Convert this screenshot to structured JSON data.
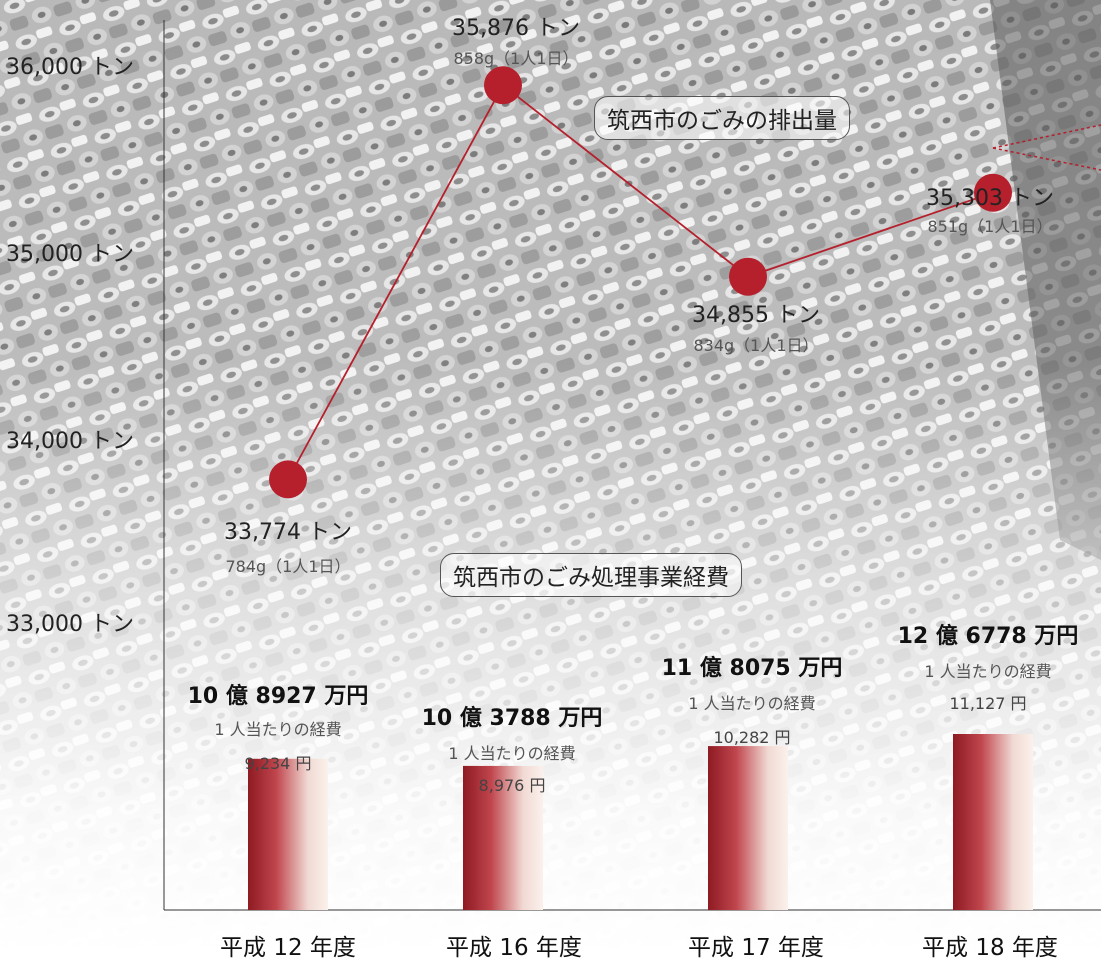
{
  "chart_data": [
    {
      "type": "line",
      "title": "筑西市のごみの排出量",
      "categories": [
        "平成 12 年度",
        "平成 16 年度",
        "平成 17 年度",
        "平成 18 年度"
      ],
      "series": [
        {
          "values": [
            33774,
            35876,
            34855,
            35303
          ],
          "value_labels": [
            "33,774 トン",
            "35,876 トン",
            "34,855 トン",
            "35,303 トン"
          ],
          "per_person_labels": [
            "784g（1人1日）",
            "858g（1人1日）",
            "834g（1人1日）",
            "851g（1人1日）"
          ]
        }
      ],
      "y_ticks": [
        {
          "value": 36000,
          "label": "36,000 トン"
        },
        {
          "value": 35000,
          "label": "35,000 トン"
        },
        {
          "value": 34000,
          "label": "34,000 トン"
        },
        {
          "value": 33000,
          "label": "33,000 トン"
        }
      ],
      "ylim": [
        32000,
        36300
      ],
      "color": "#b5202c"
    },
    {
      "type": "bar",
      "title": "筑西市のごみ処理事業経費",
      "categories": [
        "平成 12 年度",
        "平成 16 年度",
        "平成 17 年度",
        "平成 18 年度"
      ],
      "series": [
        {
          "values": [
            1089270000,
            1037880000,
            1180750000,
            1267780000
          ],
          "value_labels": [
            "10 億 8927 万円",
            "10 億 3788 万円",
            "11 億 8075 万円",
            "12 億 6778 万円"
          ],
          "per_person_caption": "1 人当たりの経費",
          "per_person_labels": [
            "9,234 円",
            "8,976 円",
            "10,282 円",
            "11,127 円"
          ]
        }
      ],
      "color": "#9e1c24"
    }
  ]
}
